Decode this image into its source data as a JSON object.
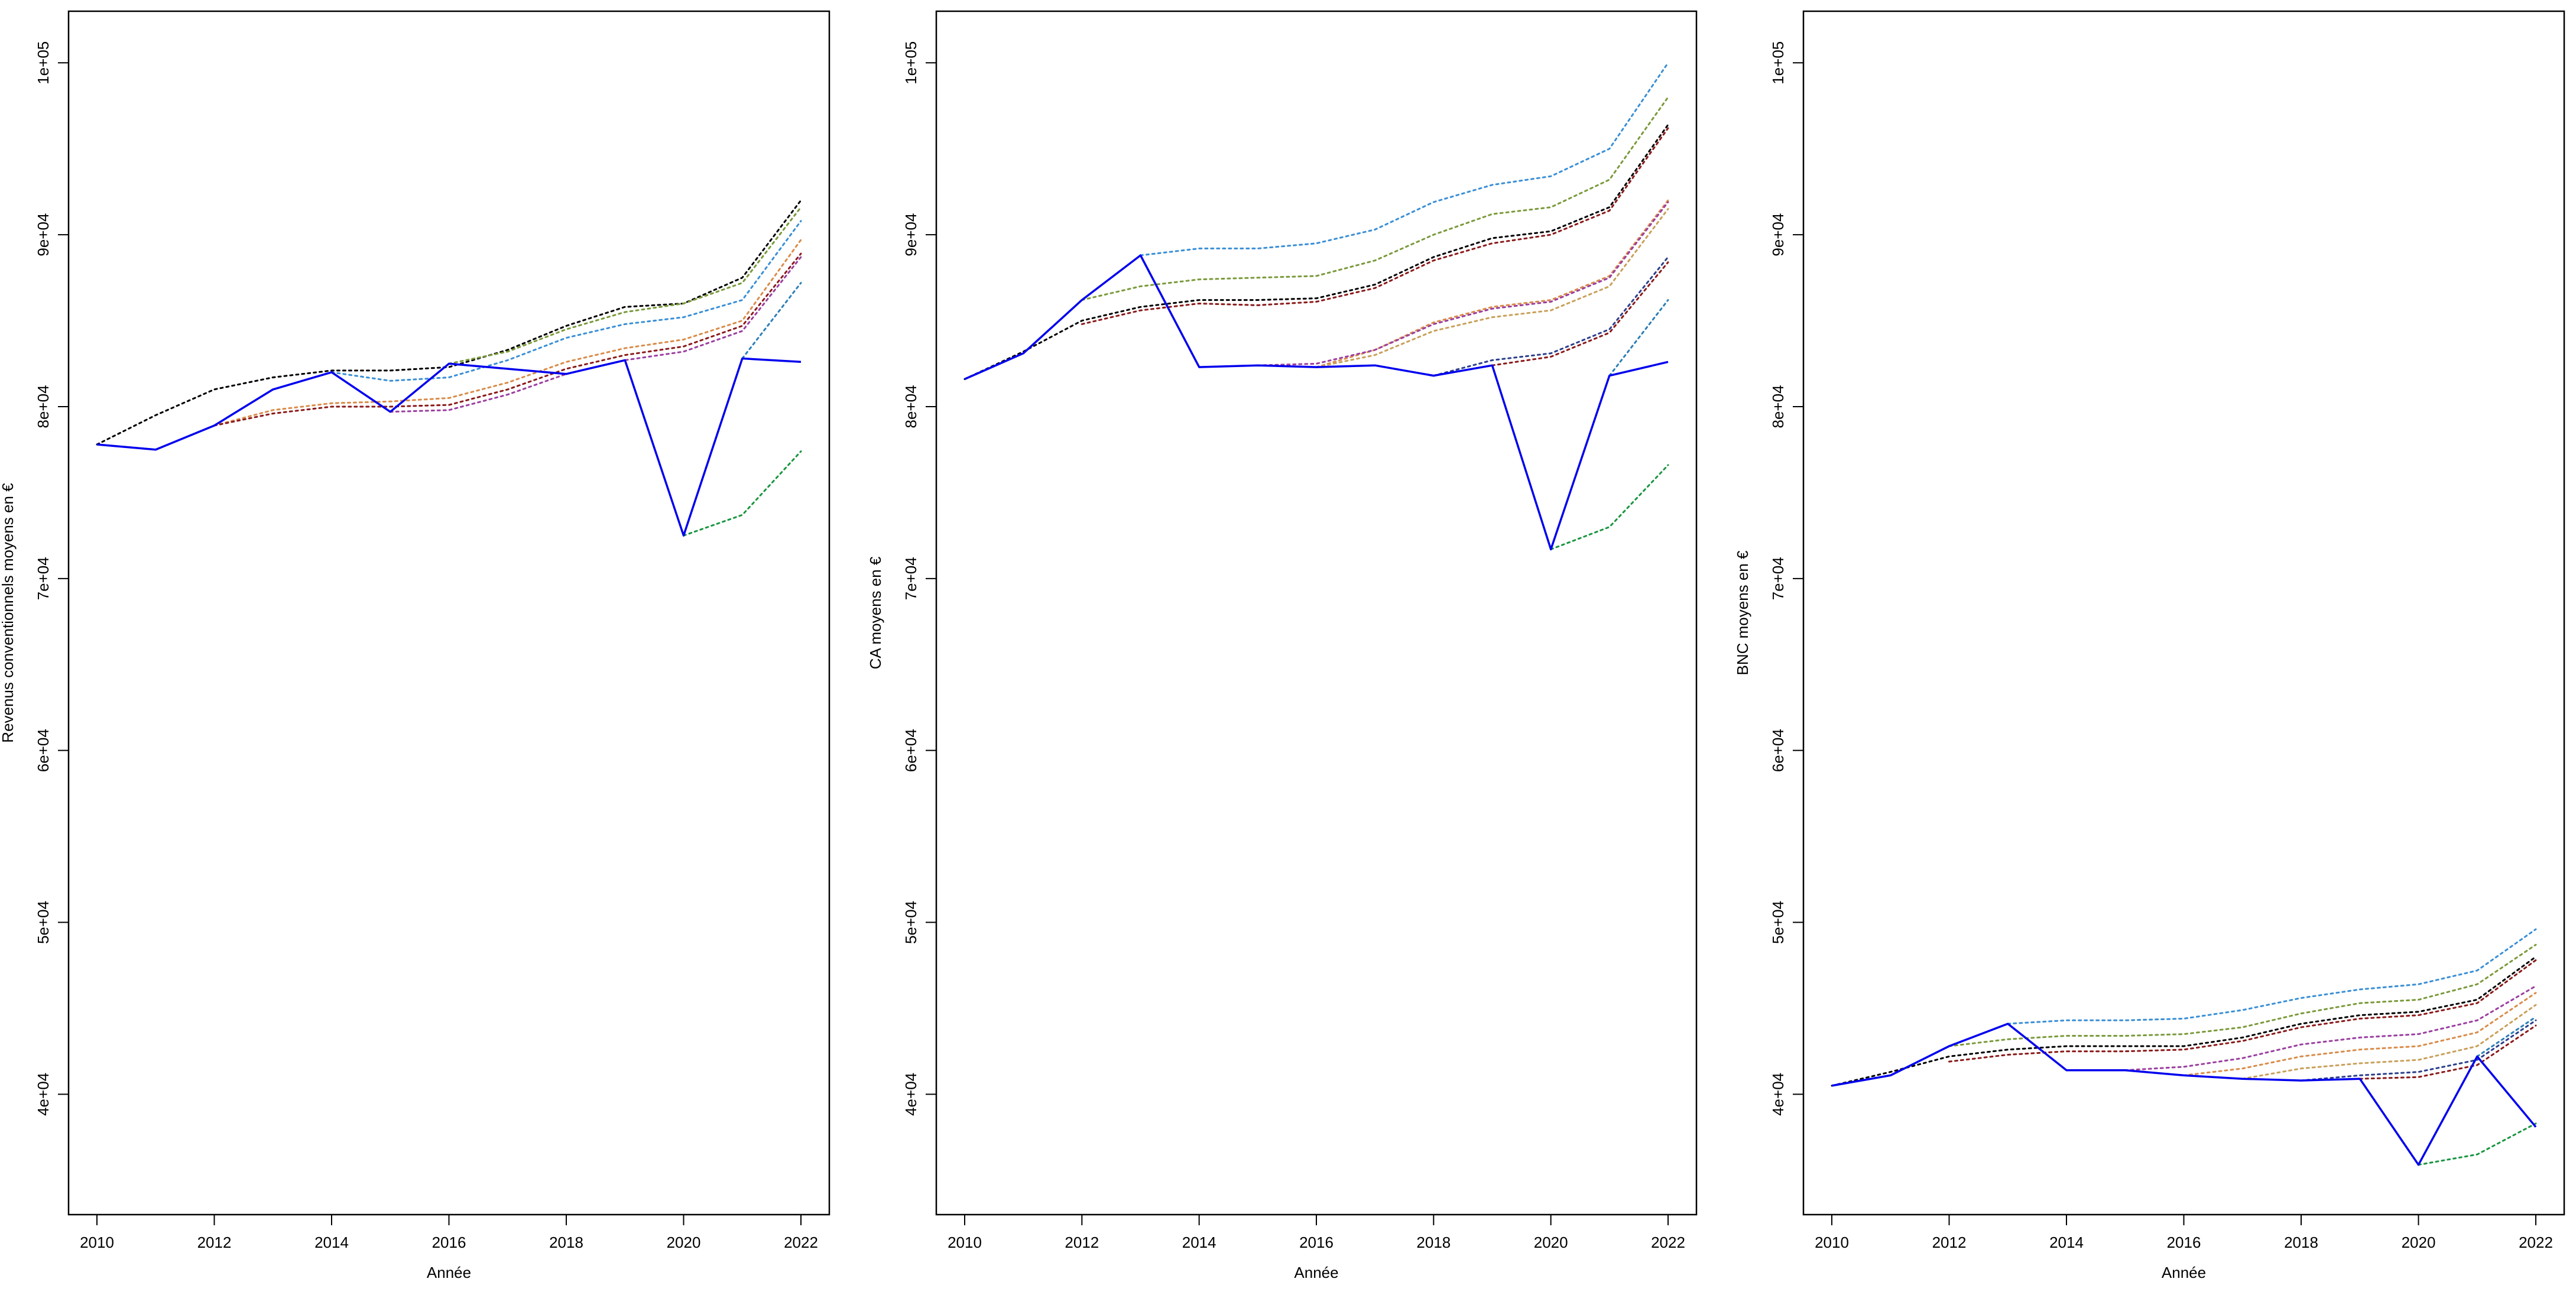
{
  "chart_data": [
    {
      "type": "line",
      "xlabel": "Année",
      "ylabel": "Revenus conventionnels moyens en €",
      "xlim": [
        2010,
        2022
      ],
      "ylim": [
        33000,
        103000
      ],
      "xticks": [
        "2010",
        "2012",
        "2014",
        "2016",
        "2018",
        "2020",
        "2022"
      ],
      "yticks": [
        "4e+04",
        "5e+04",
        "6e+04",
        "7e+04",
        "8e+04",
        "9e+04",
        "1e+05"
      ],
      "observed": {
        "color": "#0000ee",
        "x": [
          2010,
          2011,
          2012,
          2013,
          2014,
          2015,
          2016,
          2017,
          2018,
          2019,
          2020,
          2021,
          2022
        ],
        "values": [
          77800,
          77500,
          78900,
          81000,
          82000,
          79700,
          82500,
          82200,
          81900,
          82700,
          72500,
          82800,
          82600
        ]
      },
      "projections": [
        {
          "color": "#000000",
          "x": [
            2010,
            2011,
            2012,
            2013,
            2014,
            2015,
            2016,
            2017,
            2018,
            2019,
            2020,
            2021,
            2022
          ],
          "values": [
            77800,
            79500,
            81000,
            81700,
            82100,
            82100,
            82300,
            83300,
            84700,
            85800,
            86000,
            87500,
            92000
          ]
        },
        {
          "color": "#1a9641",
          "x": [
            2020,
            2021,
            2022
          ],
          "values": [
            72500,
            73700,
            77400
          ]
        },
        {
          "color": "#3a8fd6",
          "x": [
            2014,
            2015,
            2016,
            2017,
            2018,
            2019,
            2020,
            2021,
            2022
          ],
          "values": [
            82000,
            81500,
            81700,
            82700,
            84000,
            84800,
            85200,
            86200,
            90800
          ]
        },
        {
          "color": "#2c7fb8",
          "x": [
            2021,
            2022
          ],
          "values": [
            82800,
            87200
          ]
        },
        {
          "color": "#7a9a3a",
          "x": [
            2016,
            2017,
            2018,
            2019,
            2020,
            2021,
            2022
          ],
          "values": [
            82500,
            83200,
            84500,
            85500,
            86000,
            87200,
            91600
          ]
        },
        {
          "color": "#d98c4a",
          "x": [
            2012,
            2013,
            2014,
            2015,
            2016,
            2017,
            2018,
            2019,
            2020,
            2021,
            2022
          ],
          "values": [
            78900,
            79800,
            80200,
            80300,
            80500,
            81400,
            82600,
            83400,
            83900,
            85000,
            89700
          ]
        },
        {
          "color": "#8b1a1a",
          "x": [
            2012,
            2013,
            2014,
            2015,
            2016,
            2017,
            2018,
            2019,
            2020,
            2021,
            2022
          ],
          "values": [
            78900,
            79600,
            80000,
            80000,
            80100,
            81000,
            82200,
            83000,
            83500,
            84700,
            88900
          ]
        },
        {
          "color": "#9b3fa0",
          "x": [
            2015,
            2016,
            2017,
            2018,
            2019,
            2020,
            2021,
            2022
          ],
          "values": [
            79700,
            79800,
            80700,
            81900,
            82700,
            83200,
            84400,
            88700
          ]
        }
      ]
    },
    {
      "type": "line",
      "xlabel": "Année",
      "ylabel": "CA moyens en €",
      "xlim": [
        2010,
        2022
      ],
      "ylim": [
        33000,
        103000
      ],
      "xticks": [
        "2010",
        "2012",
        "2014",
        "2016",
        "2018",
        "2020",
        "2022"
      ],
      "yticks": [
        "4e+04",
        "5e+04",
        "6e+04",
        "7e+04",
        "8e+04",
        "9e+04",
        "1e+05"
      ],
      "observed": {
        "color": "#0000ee",
        "x": [
          2010,
          2011,
          2012,
          2013,
          2014,
          2015,
          2016,
          2017,
          2018,
          2019,
          2020,
          2021,
          2022
        ],
        "values": [
          81600,
          83100,
          86200,
          88800,
          82300,
          82400,
          82300,
          82400,
          81800,
          82400,
          71700,
          81800,
          82600
        ]
      },
      "projections": [
        {
          "color": "#3a8fd6",
          "x": [
            2013,
            2014,
            2015,
            2016,
            2017,
            2018,
            2019,
            2020,
            2021,
            2022
          ],
          "values": [
            88800,
            89200,
            89200,
            89500,
            90300,
            91900,
            92900,
            93400,
            95000,
            100000
          ]
        },
        {
          "color": "#7a9a3a",
          "x": [
            2012,
            2013,
            2014,
            2015,
            2016,
            2017,
            2018,
            2019,
            2020,
            2021,
            2022
          ],
          "values": [
            86200,
            87000,
            87400,
            87500,
            87600,
            88500,
            90000,
            91200,
            91600,
            93200,
            98000
          ]
        },
        {
          "color": "#000000",
          "x": [
            2010,
            2011,
            2012,
            2013,
            2014,
            2015,
            2016,
            2017,
            2018,
            2019,
            2020,
            2021,
            2022
          ],
          "values": [
            81600,
            83200,
            85000,
            85800,
            86200,
            86200,
            86300,
            87100,
            88700,
            89800,
            90200,
            91600,
            96400
          ]
        },
        {
          "color": "#8b1a1a",
          "x": [
            2012,
            2013,
            2014,
            2015,
            2016,
            2017,
            2018,
            2019,
            2020,
            2021,
            2022
          ],
          "values": [
            84800,
            85600,
            86000,
            85900,
            86100,
            86900,
            88500,
            89500,
            90000,
            91400,
            96200
          ]
        },
        {
          "color": "#d98c4a",
          "x": [
            2016,
            2017,
            2018,
            2019,
            2020,
            2021,
            2022
          ],
          "values": [
            82300,
            83300,
            84900,
            85800,
            86200,
            87600,
            92000
          ]
        },
        {
          "color": "#9b3fa0",
          "x": [
            2015,
            2016,
            2017,
            2018,
            2019,
            2020,
            2021,
            2022
          ],
          "values": [
            82400,
            82500,
            83300,
            84800,
            85700,
            86100,
            87500,
            91900
          ]
        },
        {
          "color": "#c9a05a",
          "x": [
            2016,
            2017,
            2018,
            2019,
            2020,
            2021,
            2022
          ],
          "values": [
            82300,
            83000,
            84400,
            85200,
            85600,
            87000,
            91500
          ]
        },
        {
          "color": "#2c3f8c",
          "x": [
            2018,
            2019,
            2020,
            2021,
            2022
          ],
          "values": [
            81800,
            82700,
            83100,
            84500,
            88700
          ]
        },
        {
          "color": "#8b1a1a",
          "x": [
            2019,
            2020,
            2021,
            2022
          ],
          "values": [
            82400,
            82900,
            84300,
            88400
          ]
        },
        {
          "color": "#2c7fb8",
          "x": [
            2021,
            2022
          ],
          "values": [
            81800,
            86200
          ]
        },
        {
          "color": "#1a9641",
          "x": [
            2020,
            2021,
            2022
          ],
          "values": [
            71700,
            73000,
            76600
          ]
        }
      ]
    },
    {
      "type": "line",
      "xlabel": "Année",
      "ylabel": "BNC moyens en €",
      "xlim": [
        2010,
        2022
      ],
      "ylim": [
        33000,
        103000
      ],
      "xticks": [
        "2010",
        "2012",
        "2014",
        "2016",
        "2018",
        "2020",
        "2022"
      ],
      "yticks": [
        "4e+04",
        "5e+04",
        "6e+04",
        "7e+04",
        "8e+04",
        "9e+04",
        "1e+05"
      ],
      "observed": {
        "color": "#0000ee",
        "x": [
          2010,
          2011,
          2012,
          2013,
          2014,
          2015,
          2016,
          2017,
          2018,
          2019,
          2020,
          2021,
          2022
        ],
        "values": [
          40500,
          41100,
          42800,
          44100,
          41400,
          41400,
          41100,
          40900,
          40800,
          40900,
          35900,
          42200,
          38100
        ]
      },
      "projections": [
        {
          "color": "#3a8fd6",
          "x": [
            2013,
            2014,
            2015,
            2016,
            2017,
            2018,
            2019,
            2020,
            2021,
            2022
          ],
          "values": [
            44100,
            44300,
            44300,
            44400,
            44900,
            45600,
            46100,
            46400,
            47200,
            49600
          ]
        },
        {
          "color": "#7a9a3a",
          "x": [
            2012,
            2013,
            2014,
            2015,
            2016,
            2017,
            2018,
            2019,
            2020,
            2021,
            2022
          ],
          "values": [
            42800,
            43200,
            43400,
            43400,
            43500,
            43900,
            44700,
            45300,
            45500,
            46400,
            48700
          ]
        },
        {
          "color": "#000000",
          "x": [
            2010,
            2011,
            2012,
            2013,
            2014,
            2015,
            2016,
            2017,
            2018,
            2019,
            2020,
            2021,
            2022
          ],
          "values": [
            40500,
            41300,
            42200,
            42600,
            42800,
            42800,
            42800,
            43300,
            44100,
            44600,
            44800,
            45500,
            48000
          ]
        },
        {
          "color": "#8b1a1a",
          "x": [
            2012,
            2013,
            2014,
            2015,
            2016,
            2017,
            2018,
            2019,
            2020,
            2021,
            2022
          ],
          "values": [
            41900,
            42300,
            42500,
            42500,
            42600,
            43100,
            43900,
            44400,
            44600,
            45300,
            47800
          ]
        },
        {
          "color": "#9b3fa0",
          "x": [
            2015,
            2016,
            2017,
            2018,
            2019,
            2020,
            2021,
            2022
          ],
          "values": [
            41400,
            41600,
            42100,
            42900,
            43300,
            43500,
            44300,
            46300
          ]
        },
        {
          "color": "#d98c4a",
          "x": [
            2016,
            2017,
            2018,
            2019,
            2020,
            2021,
            2022
          ],
          "values": [
            41100,
            41500,
            42200,
            42600,
            42800,
            43600,
            45900
          ]
        },
        {
          "color": "#c9a05a",
          "x": [
            2017,
            2018,
            2019,
            2020,
            2021,
            2022
          ],
          "values": [
            40900,
            41500,
            41800,
            42000,
            42800,
            45200
          ]
        },
        {
          "color": "#2c3f8c",
          "x": [
            2018,
            2019,
            2020,
            2021,
            2022
          ],
          "values": [
            40800,
            41100,
            41300,
            42000,
            44300
          ]
        },
        {
          "color": "#8b1a1a",
          "x": [
            2019,
            2020,
            2021,
            2022
          ],
          "values": [
            40900,
            41000,
            41700,
            44000
          ]
        },
        {
          "color": "#2c7fb8",
          "x": [
            2021,
            2022
          ],
          "values": [
            42200,
            44500
          ]
        },
        {
          "color": "#1a9641",
          "x": [
            2020,
            2021,
            2022
          ],
          "values": [
            35900,
            36500,
            38300
          ]
        }
      ]
    }
  ]
}
